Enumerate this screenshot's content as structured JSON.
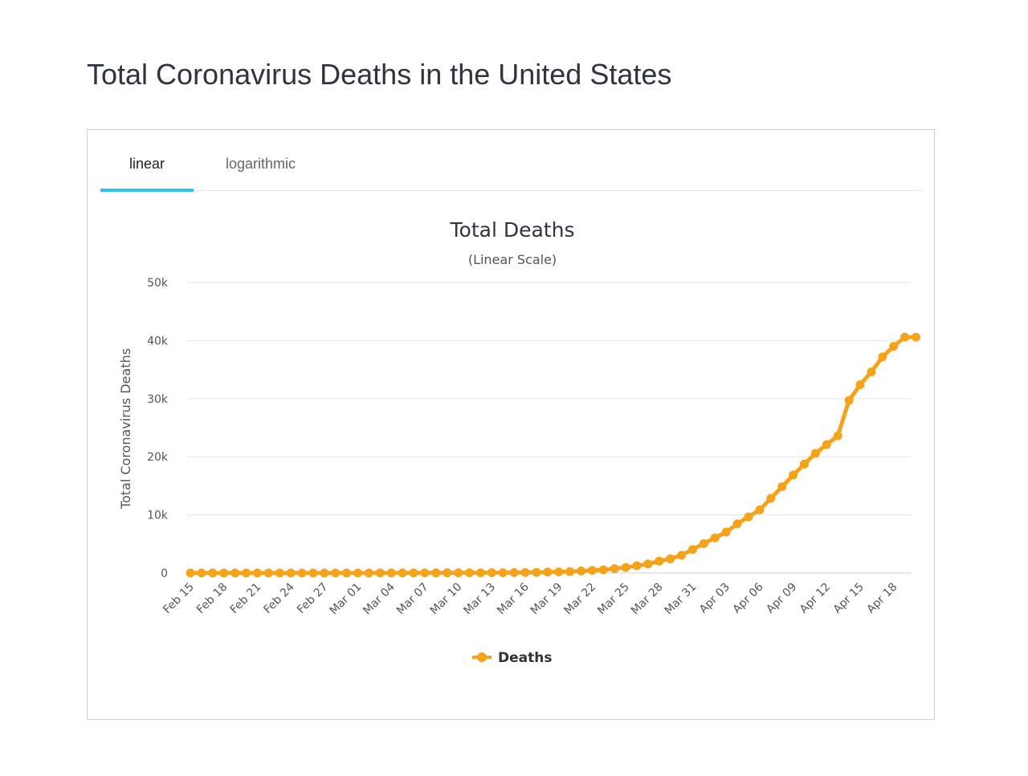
{
  "page": {
    "title": "Total Coronavirus Deaths in the United States"
  },
  "tabs": [
    {
      "label": "linear",
      "active": true
    },
    {
      "label": "logarithmic",
      "active": false
    }
  ],
  "colors": {
    "series": "#f5a31a",
    "tab_active": "#2ec0ee",
    "grid": "#e6e6e6"
  },
  "chart_data": {
    "type": "line",
    "title": "Total Deaths",
    "subtitle": "(Linear Scale)",
    "ylabel": "Total Coronavirus Deaths",
    "xlabel": "",
    "ylim": [
      0,
      50000
    ],
    "y_ticks": [
      0,
      10000,
      20000,
      30000,
      40000,
      50000
    ],
    "y_tick_labels": [
      "0",
      "10k",
      "20k",
      "30k",
      "40k",
      "50k"
    ],
    "x_tick_labels": [
      "Feb 15",
      "Feb 18",
      "Feb 21",
      "Feb 24",
      "Feb 27",
      "Mar 01",
      "Mar 04",
      "Mar 07",
      "Mar 10",
      "Mar 13",
      "Mar 16",
      "Mar 19",
      "Mar 22",
      "Mar 25",
      "Mar 28",
      "Mar 31",
      "Apr 03",
      "Apr 06",
      "Apr 09",
      "Apr 12",
      "Apr 15",
      "Apr 18"
    ],
    "grid": true,
    "legend_position": "bottom-center",
    "series": [
      {
        "name": "Deaths",
        "color": "#f5a31a",
        "x": [
          "Feb 15",
          "Feb 16",
          "Feb 17",
          "Feb 18",
          "Feb 19",
          "Feb 20",
          "Feb 21",
          "Feb 22",
          "Feb 23",
          "Feb 24",
          "Feb 25",
          "Feb 26",
          "Feb 27",
          "Feb 28",
          "Feb 29",
          "Mar 01",
          "Mar 02",
          "Mar 03",
          "Mar 04",
          "Mar 05",
          "Mar 06",
          "Mar 07",
          "Mar 08",
          "Mar 09",
          "Mar 10",
          "Mar 11",
          "Mar 12",
          "Mar 13",
          "Mar 14",
          "Mar 15",
          "Mar 16",
          "Mar 17",
          "Mar 18",
          "Mar 19",
          "Mar 20",
          "Mar 21",
          "Mar 22",
          "Mar 23",
          "Mar 24",
          "Mar 25",
          "Mar 26",
          "Mar 27",
          "Mar 28",
          "Mar 29",
          "Mar 30",
          "Mar 31",
          "Apr 01",
          "Apr 02",
          "Apr 03",
          "Apr 04",
          "Apr 05",
          "Apr 06",
          "Apr 07",
          "Apr 08",
          "Apr 09",
          "Apr 10",
          "Apr 11",
          "Apr 12",
          "Apr 13",
          "Apr 14",
          "Apr 15",
          "Apr 16",
          "Apr 17",
          "Apr 18",
          "Apr 19",
          "Apr 20"
        ],
        "values": [
          0,
          0,
          0,
          0,
          0,
          0,
          0,
          0,
          0,
          0,
          0,
          0,
          0,
          0,
          1,
          1,
          6,
          9,
          11,
          12,
          15,
          19,
          22,
          26,
          31,
          38,
          41,
          50,
          57,
          68,
          85,
          108,
          150,
          200,
          250,
          350,
          450,
          550,
          750,
          950,
          1250,
          1550,
          2050,
          2450,
          3050,
          4050,
          5050,
          6050,
          7050,
          8450,
          9650,
          10850,
          12850,
          14850,
          16850,
          18750,
          20600,
          22100,
          23600,
          29700,
          32400,
          34600,
          37200,
          39000,
          40600,
          40600
        ]
      }
    ]
  }
}
